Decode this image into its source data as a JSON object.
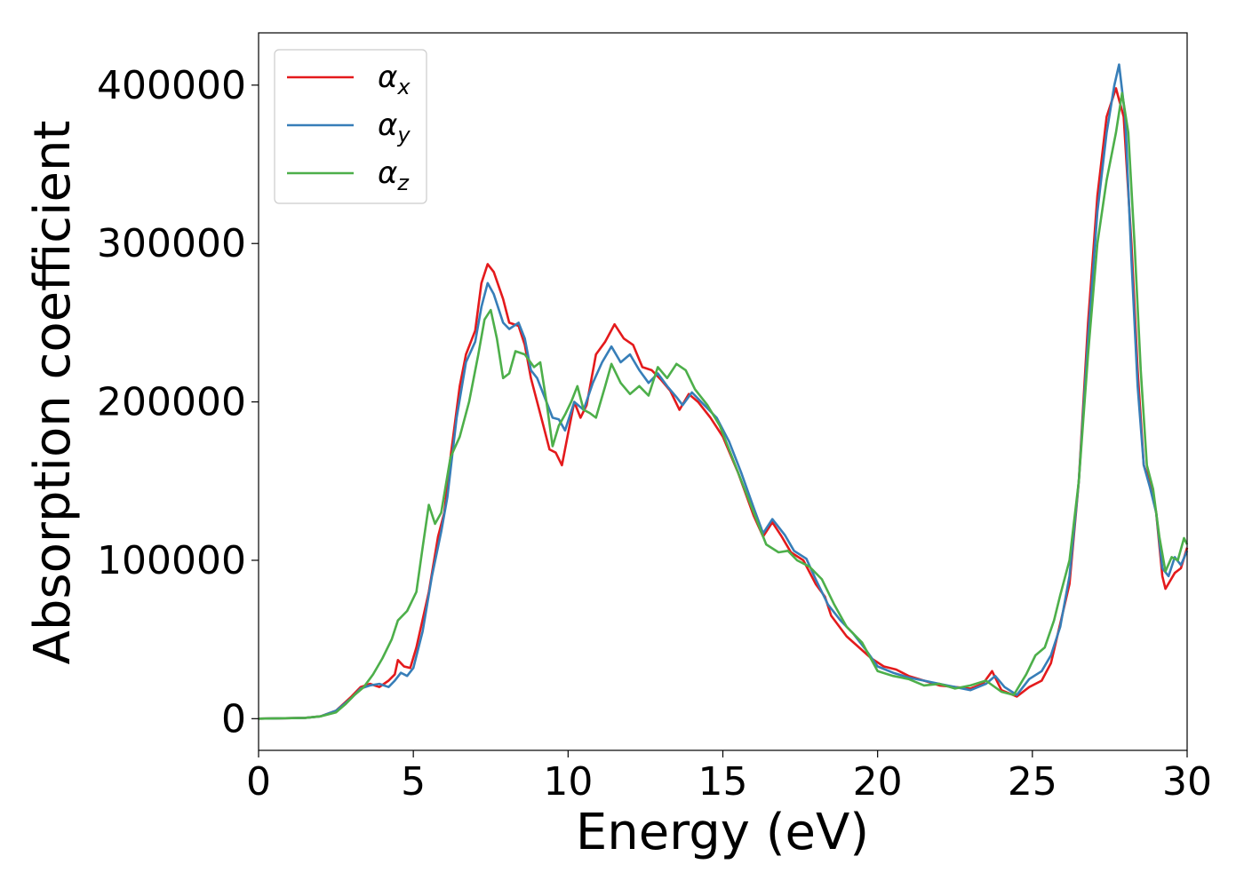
{
  "chart_data": {
    "type": "line",
    "title": "",
    "xlabel": "Energy (eV)",
    "ylabel": "Absorption coefficient",
    "xlim": [
      0,
      30
    ],
    "ylim": [
      -20000,
      433000
    ],
    "xticks": [
      "0",
      "5",
      "10",
      "15",
      "20",
      "25",
      "30"
    ],
    "yticks": [
      "0",
      "100000",
      "200000",
      "300000",
      "400000"
    ],
    "grid": false,
    "legend_position": "top-left",
    "series": [
      {
        "name": "αx",
        "symbol": "α",
        "subscript": "x",
        "color": "#e41a1c",
        "points": [
          [
            0,
            0
          ],
          [
            1.5,
            500
          ],
          [
            2.0,
            1500
          ],
          [
            2.5,
            5000
          ],
          [
            3.0,
            14000
          ],
          [
            3.3,
            20000
          ],
          [
            3.6,
            22000
          ],
          [
            3.9,
            20000
          ],
          [
            4.2,
            24000
          ],
          [
            4.4,
            28000
          ],
          [
            4.5,
            37000
          ],
          [
            4.7,
            33000
          ],
          [
            4.9,
            32000
          ],
          [
            5.1,
            45000
          ],
          [
            5.5,
            80000
          ],
          [
            5.8,
            115000
          ],
          [
            6.0,
            130000
          ],
          [
            6.2,
            165000
          ],
          [
            6.5,
            210000
          ],
          [
            6.7,
            230000
          ],
          [
            7.0,
            245000
          ],
          [
            7.2,
            275000
          ],
          [
            7.4,
            287000
          ],
          [
            7.6,
            282000
          ],
          [
            7.9,
            265000
          ],
          [
            8.1,
            250000
          ],
          [
            8.4,
            248000
          ],
          [
            8.6,
            236000
          ],
          [
            8.8,
            215000
          ],
          [
            9.0,
            200000
          ],
          [
            9.2,
            185000
          ],
          [
            9.4,
            170000
          ],
          [
            9.6,
            168000
          ],
          [
            9.8,
            160000
          ],
          [
            10.0,
            180000
          ],
          [
            10.2,
            200000
          ],
          [
            10.4,
            190000
          ],
          [
            10.6,
            198000
          ],
          [
            10.9,
            230000
          ],
          [
            11.2,
            238000
          ],
          [
            11.5,
            249000
          ],
          [
            11.8,
            240000
          ],
          [
            12.1,
            236000
          ],
          [
            12.4,
            222000
          ],
          [
            12.7,
            220000
          ],
          [
            13.0,
            214000
          ],
          [
            13.3,
            207000
          ],
          [
            13.6,
            195000
          ],
          [
            13.9,
            205000
          ],
          [
            14.2,
            200000
          ],
          [
            14.6,
            190000
          ],
          [
            15.0,
            178000
          ],
          [
            15.5,
            155000
          ],
          [
            16.0,
            128000
          ],
          [
            16.3,
            115000
          ],
          [
            16.6,
            124000
          ],
          [
            16.9,
            115000
          ],
          [
            17.2,
            105000
          ],
          [
            17.6,
            100000
          ],
          [
            18.0,
            85000
          ],
          [
            18.3,
            77000
          ],
          [
            18.5,
            65000
          ],
          [
            19.0,
            52000
          ],
          [
            19.4,
            45000
          ],
          [
            19.8,
            38000
          ],
          [
            20.2,
            33000
          ],
          [
            20.6,
            31000
          ],
          [
            21.0,
            27000
          ],
          [
            21.5,
            24000
          ],
          [
            22.0,
            21000
          ],
          [
            22.5,
            20000
          ],
          [
            23.0,
            19000
          ],
          [
            23.4,
            22000
          ],
          [
            23.7,
            30000
          ],
          [
            24.0,
            18000
          ],
          [
            24.5,
            14000
          ],
          [
            24.9,
            20000
          ],
          [
            25.3,
            24000
          ],
          [
            25.6,
            35000
          ],
          [
            25.9,
            60000
          ],
          [
            26.2,
            85000
          ],
          [
            26.5,
            150000
          ],
          [
            26.8,
            250000
          ],
          [
            27.1,
            330000
          ],
          [
            27.4,
            380000
          ],
          [
            27.7,
            398000
          ],
          [
            27.95,
            380000
          ],
          [
            28.2,
            300000
          ],
          [
            28.4,
            220000
          ],
          [
            28.6,
            160000
          ],
          [
            28.8,
            150000
          ],
          [
            29.0,
            130000
          ],
          [
            29.2,
            90000
          ],
          [
            29.3,
            82000
          ],
          [
            29.6,
            92000
          ],
          [
            29.8,
            95000
          ],
          [
            30.0,
            108000
          ]
        ]
      },
      {
        "name": "αy",
        "symbol": "α",
        "subscript": "y",
        "color": "#377eb8",
        "points": [
          [
            0,
            0
          ],
          [
            1.5,
            500
          ],
          [
            2.0,
            1500
          ],
          [
            2.5,
            5000
          ],
          [
            3.0,
            13000
          ],
          [
            3.3,
            19000
          ],
          [
            3.6,
            21000
          ],
          [
            3.9,
            22000
          ],
          [
            4.2,
            20000
          ],
          [
            4.4,
            24000
          ],
          [
            4.6,
            29000
          ],
          [
            4.8,
            27000
          ],
          [
            5.0,
            32000
          ],
          [
            5.3,
            55000
          ],
          [
            5.6,
            90000
          ],
          [
            5.9,
            118000
          ],
          [
            6.1,
            140000
          ],
          [
            6.4,
            190000
          ],
          [
            6.7,
            225000
          ],
          [
            7.0,
            238000
          ],
          [
            7.2,
            260000
          ],
          [
            7.4,
            275000
          ],
          [
            7.6,
            268000
          ],
          [
            7.9,
            250000
          ],
          [
            8.1,
            246000
          ],
          [
            8.4,
            250000
          ],
          [
            8.6,
            240000
          ],
          [
            8.8,
            220000
          ],
          [
            9.0,
            215000
          ],
          [
            9.3,
            200000
          ],
          [
            9.5,
            190000
          ],
          [
            9.7,
            189000
          ],
          [
            9.9,
            182000
          ],
          [
            10.2,
            200000
          ],
          [
            10.5,
            195000
          ],
          [
            10.8,
            212000
          ],
          [
            11.1,
            225000
          ],
          [
            11.4,
            235000
          ],
          [
            11.7,
            225000
          ],
          [
            12.0,
            230000
          ],
          [
            12.3,
            220000
          ],
          [
            12.6,
            212000
          ],
          [
            12.9,
            218000
          ],
          [
            13.2,
            210000
          ],
          [
            13.5,
            203000
          ],
          [
            13.7,
            198000
          ],
          [
            14.0,
            206000
          ],
          [
            14.4,
            198000
          ],
          [
            14.8,
            190000
          ],
          [
            15.2,
            175000
          ],
          [
            15.6,
            155000
          ],
          [
            16.0,
            133000
          ],
          [
            16.3,
            117000
          ],
          [
            16.6,
            126000
          ],
          [
            17.0,
            116000
          ],
          [
            17.3,
            106000
          ],
          [
            17.7,
            101000
          ],
          [
            18.0,
            88000
          ],
          [
            18.4,
            72000
          ],
          [
            18.8,
            62000
          ],
          [
            19.2,
            54000
          ],
          [
            19.6,
            44000
          ],
          [
            20.0,
            33000
          ],
          [
            20.5,
            29000
          ],
          [
            21.0,
            26000
          ],
          [
            21.5,
            24000
          ],
          [
            22.0,
            22000
          ],
          [
            22.5,
            20000
          ],
          [
            23.0,
            18000
          ],
          [
            23.5,
            22000
          ],
          [
            23.8,
            27000
          ],
          [
            24.1,
            20000
          ],
          [
            24.5,
            15000
          ],
          [
            24.9,
            25000
          ],
          [
            25.3,
            30000
          ],
          [
            25.6,
            40000
          ],
          [
            25.9,
            58000
          ],
          [
            26.2,
            90000
          ],
          [
            26.5,
            150000
          ],
          [
            26.8,
            240000
          ],
          [
            27.1,
            320000
          ],
          [
            27.4,
            370000
          ],
          [
            27.65,
            400000
          ],
          [
            27.8,
            413000
          ],
          [
            28.0,
            380000
          ],
          [
            28.2,
            290000
          ],
          [
            28.4,
            210000
          ],
          [
            28.6,
            160000
          ],
          [
            28.8,
            146000
          ],
          [
            29.0,
            130000
          ],
          [
            29.2,
            95000
          ],
          [
            29.4,
            90000
          ],
          [
            29.6,
            102000
          ],
          [
            29.8,
            97000
          ],
          [
            30.0,
            106000
          ]
        ]
      },
      {
        "name": "αz",
        "symbol": "α",
        "subscript": "z",
        "color": "#4daf4a",
        "points": [
          [
            0,
            0
          ],
          [
            1.5,
            500
          ],
          [
            2.0,
            1500
          ],
          [
            2.5,
            4000
          ],
          [
            2.8,
            9000
          ],
          [
            3.1,
            15000
          ],
          [
            3.4,
            20000
          ],
          [
            3.7,
            28000
          ],
          [
            4.0,
            38000
          ],
          [
            4.3,
            50000
          ],
          [
            4.5,
            62000
          ],
          [
            4.8,
            68000
          ],
          [
            5.1,
            80000
          ],
          [
            5.3,
            108000
          ],
          [
            5.5,
            135000
          ],
          [
            5.7,
            123000
          ],
          [
            5.9,
            130000
          ],
          [
            6.2,
            165000
          ],
          [
            6.5,
            178000
          ],
          [
            6.8,
            200000
          ],
          [
            7.1,
            230000
          ],
          [
            7.3,
            252000
          ],
          [
            7.5,
            258000
          ],
          [
            7.7,
            240000
          ],
          [
            7.9,
            215000
          ],
          [
            8.1,
            218000
          ],
          [
            8.3,
            232000
          ],
          [
            8.6,
            230000
          ],
          [
            8.9,
            222000
          ],
          [
            9.1,
            225000
          ],
          [
            9.3,
            200000
          ],
          [
            9.5,
            172000
          ],
          [
            9.7,
            185000
          ],
          [
            9.9,
            192000
          ],
          [
            10.1,
            200000
          ],
          [
            10.3,
            210000
          ],
          [
            10.5,
            195000
          ],
          [
            10.7,
            193000
          ],
          [
            10.9,
            190000
          ],
          [
            11.2,
            210000
          ],
          [
            11.4,
            224000
          ],
          [
            11.7,
            212000
          ],
          [
            12.0,
            205000
          ],
          [
            12.3,
            210000
          ],
          [
            12.6,
            204000
          ],
          [
            12.9,
            222000
          ],
          [
            13.2,
            215000
          ],
          [
            13.5,
            224000
          ],
          [
            13.8,
            220000
          ],
          [
            14.1,
            208000
          ],
          [
            14.5,
            198000
          ],
          [
            14.9,
            185000
          ],
          [
            15.3,
            165000
          ],
          [
            15.7,
            145000
          ],
          [
            16.1,
            125000
          ],
          [
            16.4,
            110000
          ],
          [
            16.8,
            105000
          ],
          [
            17.1,
            106000
          ],
          [
            17.4,
            100000
          ],
          [
            17.8,
            96000
          ],
          [
            18.2,
            88000
          ],
          [
            18.6,
            72000
          ],
          [
            19.0,
            58000
          ],
          [
            19.5,
            48000
          ],
          [
            20.0,
            30000
          ],
          [
            20.5,
            27000
          ],
          [
            21.0,
            25000
          ],
          [
            21.5,
            21000
          ],
          [
            22.0,
            22000
          ],
          [
            22.5,
            19000
          ],
          [
            23.0,
            21000
          ],
          [
            23.5,
            24000
          ],
          [
            24.0,
            17000
          ],
          [
            24.4,
            15000
          ],
          [
            24.8,
            28000
          ],
          [
            25.1,
            40000
          ],
          [
            25.4,
            45000
          ],
          [
            25.7,
            62000
          ],
          [
            25.9,
            78000
          ],
          [
            26.2,
            100000
          ],
          [
            26.5,
            150000
          ],
          [
            26.8,
            230000
          ],
          [
            27.1,
            300000
          ],
          [
            27.4,
            340000
          ],
          [
            27.7,
            370000
          ],
          [
            27.9,
            395000
          ],
          [
            28.1,
            370000
          ],
          [
            28.3,
            300000
          ],
          [
            28.5,
            220000
          ],
          [
            28.7,
            160000
          ],
          [
            28.9,
            145000
          ],
          [
            29.1,
            115000
          ],
          [
            29.3,
            93000
          ],
          [
            29.5,
            102000
          ],
          [
            29.7,
            100000
          ],
          [
            29.9,
            114000
          ],
          [
            30.0,
            110000
          ]
        ]
      }
    ]
  }
}
